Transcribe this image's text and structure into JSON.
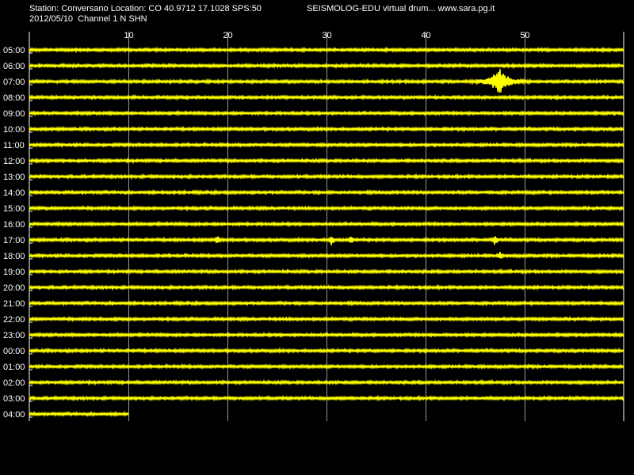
{
  "header": {
    "station_line": "Station: Conversano Location: CO 40.9712 17.1028 SPS:50",
    "date_line": "2012/05/10  Channel 1 N SHN",
    "credit": "SEISMOLOG-EDU virtual drum... www.sara.pg.it"
  },
  "colors": {
    "background": "#000000",
    "trace": "#ffff00",
    "grid": "#ffffff",
    "text": "#ffffff"
  },
  "chart_data": {
    "type": "line",
    "xlim": [
      0,
      60
    ],
    "x_ticks": [
      10,
      20,
      30,
      40,
      50
    ],
    "rows": [
      "05:00",
      "06:00",
      "07:00",
      "08:00",
      "09:00",
      "10:00",
      "11:00",
      "12:00",
      "13:00",
      "14:00",
      "15:00",
      "16:00",
      "17:00",
      "18:00",
      "19:00",
      "20:00",
      "21:00",
      "22:00",
      "23:00",
      "00:00",
      "01:00",
      "02:00",
      "03:00",
      "04:00"
    ],
    "last_row_end_minute": 10,
    "events": [
      {
        "row": "07:00",
        "minute": 47.5,
        "amplitude": 1.0,
        "type": "burst"
      },
      {
        "row": "17:00",
        "minute": 19.0,
        "amplitude": 0.35,
        "type": "spikes"
      },
      {
        "row": "17:00",
        "minute": 30.5,
        "amplitude": 0.6,
        "type": "spikes"
      },
      {
        "row": "17:00",
        "minute": 32.5,
        "amplitude": 0.3,
        "type": "spikes"
      },
      {
        "row": "17:00",
        "minute": 47.0,
        "amplitude": 0.5,
        "type": "spikes"
      },
      {
        "row": "18:00",
        "minute": 47.5,
        "amplitude": 0.3,
        "type": "spikes"
      }
    ]
  }
}
